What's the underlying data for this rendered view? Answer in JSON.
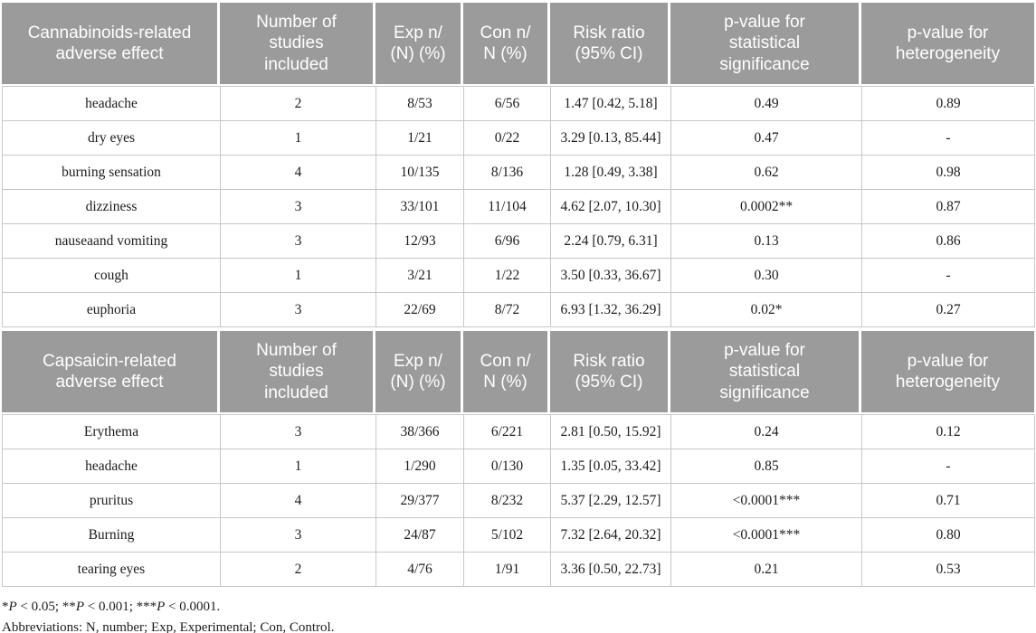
{
  "table": {
    "sections": [
      {
        "group": "Cannabinoids",
        "columns": [
          "Cannabinoids-related\nadverse effect",
          "Number of\nstudies\nincluded",
          "Exp n/\n(N) (%)",
          "Con n/\nN (%)",
          "Risk ratio\n(95% CI)",
          "p-value for\nstatistical\nsignificance",
          "p-value for\nheterogeneity"
        ],
        "rows": [
          [
            "headache",
            "2",
            "8/53",
            "6/56",
            "1.47 [0.42, 5.18]",
            "0.49",
            "0.89"
          ],
          [
            "dry eyes",
            "1",
            "1/21",
            "0/22",
            "3.29 [0.13, 85.44]",
            "0.47",
            "-"
          ],
          [
            "burning sensation",
            "4",
            "10/135",
            "8/136",
            "1.28 [0.49, 3.38]",
            "0.62",
            "0.98"
          ],
          [
            "dizziness",
            "3",
            "33/101",
            "11/104",
            "4.62 [2.07, 10.30]",
            "0.0002**",
            "0.87"
          ],
          [
            "nauseaand vomiting",
            "3",
            "12/93",
            "6/96",
            "2.24 [0.79, 6.31]",
            "0.13",
            "0.86"
          ],
          [
            "cough",
            "1",
            "3/21",
            "1/22",
            "3.50 [0.33, 36.67]",
            "0.30",
            "-"
          ],
          [
            "euphoria",
            "3",
            "22/69",
            "8/72",
            "6.93 [1.32, 36.29]",
            "0.02*",
            "0.27"
          ]
        ]
      },
      {
        "group": "Capsaicin",
        "columns": [
          "Capsaicin-related\nadverse effect",
          "Number of\nstudies\nincluded",
          "Exp n/\n(N) (%)",
          "Con n/\nN (%)",
          "Risk ratio\n(95% CI)",
          "p-value for\nstatistical\nsignificance",
          "p-value for\nheterogeneity"
        ],
        "rows": [
          [
            "Erythema",
            "3",
            "38/366",
            "6/221",
            "2.81 [0.50, 15.92]",
            "0.24",
            "0.12"
          ],
          [
            "headache",
            "1",
            "1/290",
            "0/130",
            "1.35 [0.05, 33.42]",
            "0.85",
            "-"
          ],
          [
            "pruritus",
            "4",
            "29/377",
            "8/232",
            "5.37 [2.29, 12.57]",
            "<0.0001***",
            "0.71"
          ],
          [
            "Burning",
            "3",
            "24/87",
            "5/102",
            "7.32 [2.64, 20.32]",
            "<0.0001***",
            "0.80"
          ],
          [
            "tearing eyes",
            "2",
            "4/76",
            "1/91",
            "3.36 [0.50, 22.73]",
            "0.21",
            "0.53"
          ]
        ]
      }
    ]
  },
  "footnotes": [
    {
      "parts": [
        {
          "t": "*"
        },
        {
          "t": "P",
          "i": true
        },
        {
          "t": " < 0.05; **"
        },
        {
          "t": "P",
          "i": true
        },
        {
          "t": " < 0.001; ***"
        },
        {
          "t": "P",
          "i": true
        },
        {
          "t": " < 0.0001."
        }
      ]
    },
    {
      "parts": [
        {
          "t": "Abbreviations: N, number; Exp, Experimental; Con, Control."
        }
      ]
    }
  ],
  "colors": {
    "header_bg": "#9b9b9b",
    "header_text": "#ffffff",
    "body_text": "#1c1c1c",
    "border": "#c7c7c7"
  }
}
